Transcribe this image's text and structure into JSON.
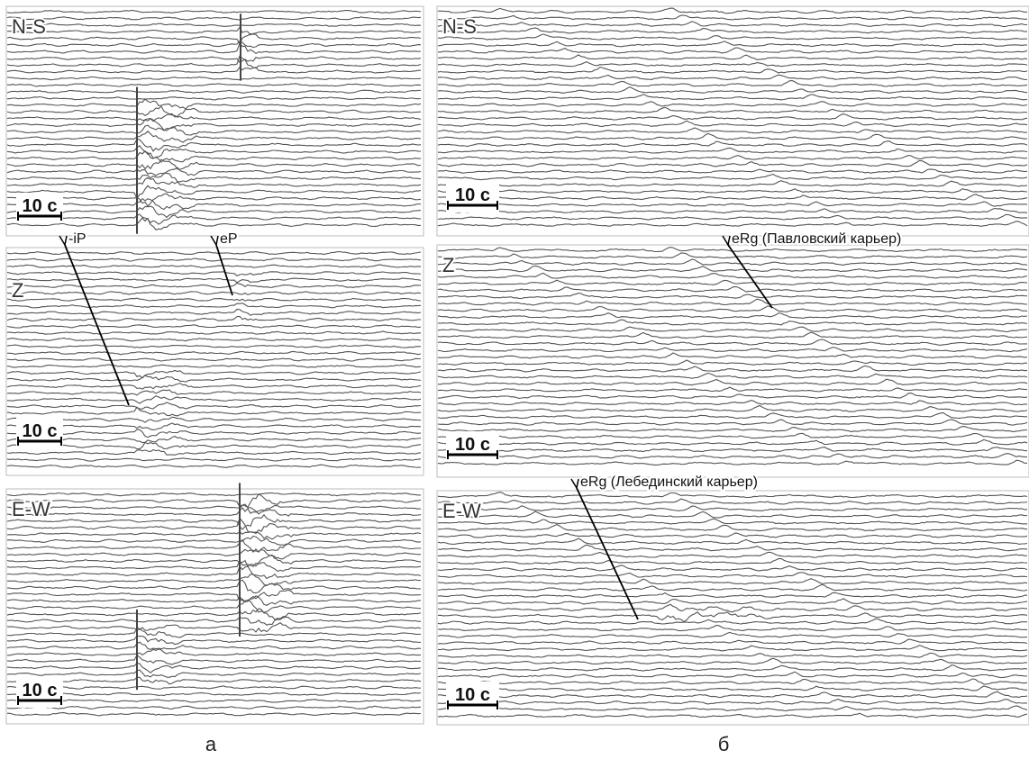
{
  "figure": {
    "left": {
      "caption": "а",
      "panels": [
        {
          "component": "N-S",
          "scale": "10 с"
        },
        {
          "component": "Z",
          "scale": "10 с",
          "picks": [
            "-iP",
            "eP"
          ]
        },
        {
          "component": "E-W",
          "scale": "10 с"
        }
      ]
    },
    "right": {
      "caption": "б",
      "panels": [
        {
          "component": "N-S",
          "scale": "10 с"
        },
        {
          "component": "Z",
          "scale": "10 с",
          "picks": [
            "eRg (Павловский карьер)"
          ]
        },
        {
          "component": "E-W",
          "scale": "10 с",
          "picks": [
            "eRg (Лебединский карьер)"
          ]
        }
      ]
    }
  }
}
